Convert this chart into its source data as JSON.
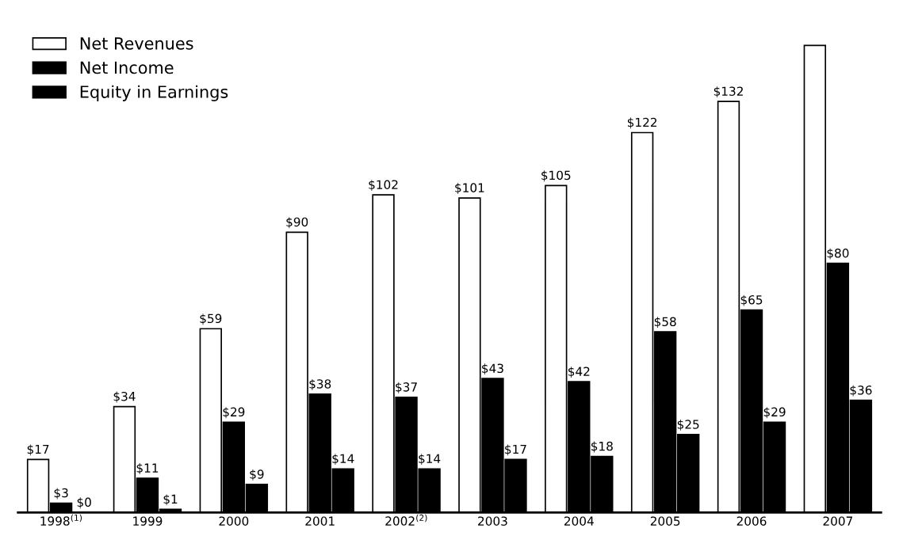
{
  "chart_data": {
    "type": "bar",
    "categories": [
      "1998$^{(1)}$",
      "1999",
      "2000",
      "2001",
      "2002$^{(2)}$",
      "2003",
      "2004",
      "2005",
      "2006",
      "2007"
    ],
    "series": [
      {
        "name": "Net Revenues",
        "color": "#ffffff",
        "values": [
          17,
          34,
          59,
          90,
          102,
          101,
          105,
          122,
          132,
          150
        ],
        "value_labels": [
          "$17",
          "$34",
          "$59",
          "$90",
          "$102",
          "$101",
          "$105",
          "$122",
          "$132",
          null
        ]
      },
      {
        "name": "Net Income",
        "color": "#000000",
        "values": [
          3,
          11,
          29,
          38,
          37,
          43,
          42,
          58,
          65,
          80
        ],
        "value_labels": [
          "$3",
          "$11",
          "$29",
          "$38",
          "$37",
          "$43",
          "$42",
          "$58",
          "$65",
          "$80"
        ]
      },
      {
        "name": "Equity in Earnings",
        "color": "#000000",
        "values": [
          0,
          1,
          9,
          14,
          14,
          17,
          18,
          25,
          29,
          36
        ],
        "value_labels": [
          "$0",
          "$1",
          "$9",
          "$14",
          "$14",
          "$17",
          "$18",
          "$25",
          "$29",
          "$36"
        ]
      }
    ],
    "legend": "top left",
    "tick_labels": "x",
    "grid": false
  }
}
